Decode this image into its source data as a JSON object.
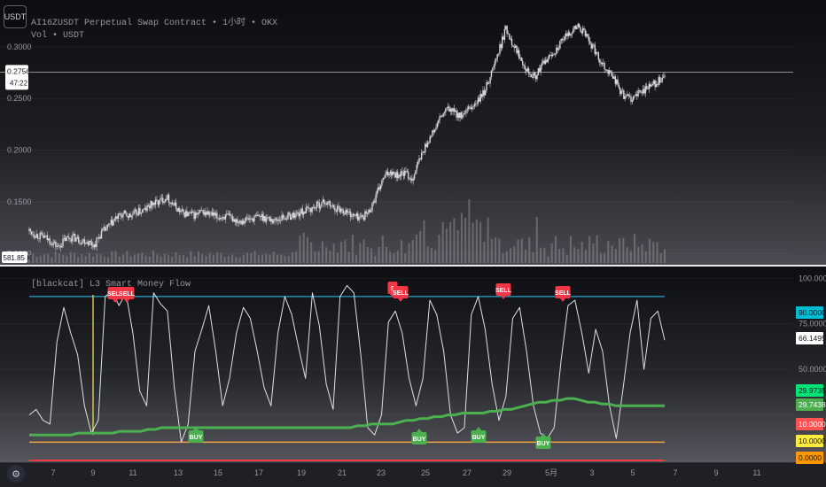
{
  "symbol_button": "USDT",
  "legend": {
    "title": "AI16ZUSDT Perpetual Swap Contract • 1小时 • OKX",
    "volume": "Vol • USDT",
    "indicator": "[blackcat] L3 Smart Money Flow"
  },
  "price_axis": {
    "ticks": [
      "0.3000",
      "0.2500",
      "0.2000",
      "0.1500",
      "0.1000"
    ],
    "current_price": "0.2756",
    "countdown": "47:22",
    "volume_value": "581.85 K"
  },
  "indicator_axis": {
    "ticks": [
      "100.0000",
      "75.0000",
      "50.0000",
      "0.0000"
    ],
    "badges": [
      {
        "text": "90.0000",
        "color": "#00bcd4",
        "text_color": "#131722"
      },
      {
        "text": "66.1495",
        "color": "#ffffff",
        "text_color": "#131722"
      },
      {
        "text": "29.9735",
        "color": "#00e676",
        "text_color": "#131722"
      },
      {
        "text": "29.7438",
        "color": "#4caf50",
        "text_color": "#ffffff"
      },
      {
        "text": "10.0000",
        "color": "#ff5252",
        "text_color": "#ffffff"
      },
      {
        "text": "10.0000",
        "color": "#ffeb3b",
        "text_color": "#131722"
      },
      {
        "text": "0.0000",
        "color": "#ff9800",
        "text_color": "#131722"
      }
    ]
  },
  "time_axis": [
    "7",
    "9",
    "11",
    "13",
    "15",
    "17",
    "19",
    "21",
    "23",
    "25",
    "27",
    "29",
    "5月",
    "3",
    "5",
    "7",
    "9",
    "11"
  ],
  "signals": [
    {
      "label": "SELL",
      "type": "sell"
    },
    {
      "label": "SELL",
      "type": "sell"
    },
    {
      "label": "S",
      "type": "sell"
    },
    {
      "label": "SELL",
      "type": "sell"
    },
    {
      "label": "SELL",
      "type": "sell"
    },
    {
      "label": "SELL",
      "type": "sell"
    },
    {
      "label": "BUY",
      "type": "buy"
    },
    {
      "label": "BUY",
      "type": "buy"
    },
    {
      "label": "BUY",
      "type": "buy"
    },
    {
      "label": "BUY",
      "type": "buy"
    }
  ],
  "colors": {
    "upper_line": "#26a4c9",
    "lower_orange": "#f5a142",
    "lower_red": "#f23645",
    "money_flow": "#4caf50",
    "oscillator": "#e0e0e0",
    "sell": "#f23645",
    "buy": "#4caf50",
    "marker": "#d8d24a"
  },
  "chart_data": {
    "type": "line",
    "panes": [
      {
        "name": "price",
        "ylim": [
          0.09,
          0.335
        ],
        "series": [
          {
            "values": [
              0.122,
              0.118,
              0.116,
              0.112,
              0.106,
              0.114,
              0.116,
              0.113,
              0.112,
              0.108,
              0.12,
              0.126,
              0.134,
              0.138,
              0.136,
              0.14,
              0.142,
              0.148,
              0.15,
              0.155,
              0.147,
              0.14,
              0.138,
              0.137,
              0.14,
              0.138,
              0.135,
              0.136,
              0.134,
              0.132,
              0.133,
              0.134,
              0.136,
              0.134,
              0.132,
              0.135,
              0.136,
              0.138,
              0.141,
              0.143,
              0.147,
              0.15,
              0.145,
              0.143,
              0.14,
              0.136,
              0.135,
              0.14,
              0.155,
              0.172,
              0.18,
              0.176,
              0.178,
              0.172,
              0.19,
              0.206,
              0.218,
              0.232,
              0.24,
              0.236,
              0.232,
              0.24,
              0.246,
              0.256,
              0.275,
              0.295,
              0.318,
              0.303,
              0.29,
              0.278,
              0.27,
              0.282,
              0.29,
              0.298,
              0.307,
              0.315,
              0.32,
              0.312,
              0.3,
              0.288,
              0.278,
              0.27,
              0.255,
              0.25,
              0.252,
              0.258,
              0.262,
              0.266,
              0.27
            ]
          }
        ]
      },
      {
        "name": "indicator",
        "ylim": [
          0,
          105
        ],
        "levels": [
          90,
          10
        ],
        "series": [
          {
            "values": [
              25,
              28,
              22,
              20,
              65,
              84,
              70,
              58,
              30,
              15,
              22,
              90,
              93,
              85,
              92,
              70,
              38,
              30,
              92,
              86,
              82,
              40,
              10,
              20,
              60,
              72,
              85,
              60,
              30,
              45,
              70,
              84,
              78,
              60,
              40,
              30,
              70,
              90,
              80,
              62,
              45,
              92,
              74,
              42,
              28,
              90,
              96,
              92,
              58,
              18,
              14,
              25,
              76,
              82,
              70,
              45,
              30,
              45,
              88,
              80,
              60,
              25,
              15,
              18,
              80,
              90,
              72,
              42,
              22,
              35,
              78,
              84,
              60,
              30,
              15,
              12,
              18,
              55,
              85,
              88,
              70,
              48,
              72,
              60,
              30,
              12,
              40,
              70,
              88,
              50,
              78,
              82,
              66
            ]
          },
          {
            "values": [
              14,
              14,
              14,
              14,
              14,
              14,
              14,
              15,
              15,
              15,
              15,
              15,
              15,
              16,
              16,
              16,
              16,
              17,
              17,
              18,
              18,
              18,
              18,
              18,
              18,
              18,
              18,
              18,
              18,
              18,
              18,
              18,
              18,
              18,
              18,
              18,
              18,
              18,
              18,
              18,
              18,
              18,
              18,
              18,
              18,
              18,
              18,
              19,
              19,
              20,
              20,
              20,
              20,
              21,
              22,
              22,
              23,
              23,
              24,
              24,
              25,
              25,
              26,
              26,
              26,
              26,
              27,
              27,
              28,
              28,
              29,
              30,
              31,
              32,
              32,
              33,
              33,
              34,
              34,
              33,
              32,
              32,
              31,
              31,
              30,
              30,
              30,
              30,
              30,
              30,
              30,
              29.97
            ]
          }
        ]
      }
    ]
  }
}
